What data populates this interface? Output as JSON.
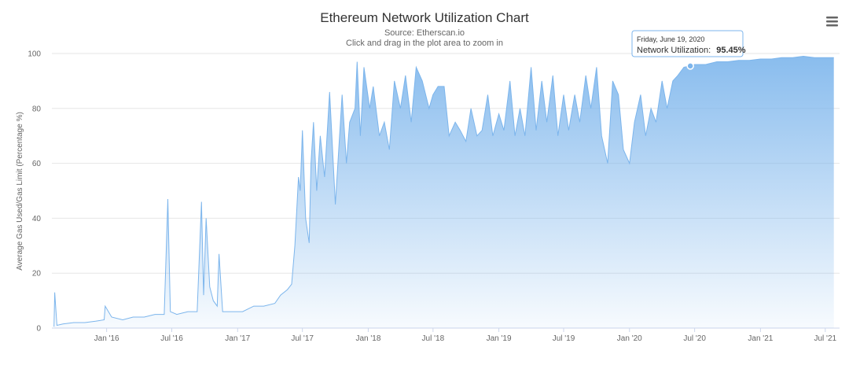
{
  "chart_data": {
    "type": "area",
    "title": "Ethereum Network Utilization Chart",
    "subtitle": "Source: Etherscan.io",
    "subtitle2": "Click and drag in the plot area to zoom in",
    "ylabel": "Average Gas Used/Gas Limit (Percentage %)",
    "xlabel": "",
    "ylim": [
      0,
      100
    ],
    "yticks": [
      0,
      20,
      40,
      60,
      80,
      100
    ],
    "xticks": [
      "Jan '16",
      "Jul '16",
      "Jan '17",
      "Jul '17",
      "Jan '18",
      "Jul '18",
      "Jan '19",
      "Jul '19",
      "Jan '20",
      "Jul '20",
      "Jan '21",
      "Jul '21"
    ],
    "grid": true,
    "legend": "none",
    "series": [
      {
        "name": "Network Utilization",
        "color": "#7cb5ec",
        "x": [
          "2015-08-07",
          "2015-08-09",
          "2015-08-15",
          "2015-09-01",
          "2015-10-01",
          "2015-11-01",
          "2015-12-01",
          "2015-12-25",
          "2015-12-28",
          "2016-01-15",
          "2016-02-15",
          "2016-03-15",
          "2016-04-15",
          "2016-05-15",
          "2016-06-10",
          "2016-06-20",
          "2016-06-27",
          "2016-07-15",
          "2016-08-15",
          "2016-09-10",
          "2016-09-22",
          "2016-09-28",
          "2016-10-05",
          "2016-10-15",
          "2016-10-25",
          "2016-11-05",
          "2016-11-10",
          "2016-11-20",
          "2016-12-05",
          "2017-01-15",
          "2017-02-15",
          "2017-03-15",
          "2017-04-15",
          "2017-05-01",
          "2017-05-20",
          "2017-06-01",
          "2017-06-10",
          "2017-06-20",
          "2017-06-25",
          "2017-07-01",
          "2017-07-10",
          "2017-07-20",
          "2017-07-25",
          "2017-08-01",
          "2017-08-10",
          "2017-08-20",
          "2017-09-01",
          "2017-09-15",
          "2017-10-01",
          "2017-10-20",
          "2017-11-01",
          "2017-11-10",
          "2017-11-25",
          "2017-12-01",
          "2017-12-10",
          "2017-12-20",
          "2018-01-05",
          "2018-01-15",
          "2018-02-01",
          "2018-02-15",
          "2018-03-01",
          "2018-03-15",
          "2018-04-01",
          "2018-04-15",
          "2018-05-01",
          "2018-05-15",
          "2018-06-01",
          "2018-06-20",
          "2018-07-01",
          "2018-07-15",
          "2018-08-01",
          "2018-08-15",
          "2018-09-01",
          "2018-09-15",
          "2018-10-01",
          "2018-10-15",
          "2018-11-01",
          "2018-11-15",
          "2018-12-01",
          "2018-12-15",
          "2019-01-01",
          "2019-01-15",
          "2019-02-01",
          "2019-02-15",
          "2019-03-01",
          "2019-03-15",
          "2019-04-01",
          "2019-04-15",
          "2019-05-01",
          "2019-05-15",
          "2019-06-01",
          "2019-06-15",
          "2019-07-01",
          "2019-07-15",
          "2019-08-01",
          "2019-08-15",
          "2019-09-01",
          "2019-09-15",
          "2019-10-01",
          "2019-10-15",
          "2019-11-01",
          "2019-11-15",
          "2019-12-01",
          "2019-12-15",
          "2020-01-01",
          "2020-01-15",
          "2020-02-01",
          "2020-02-15",
          "2020-03-01",
          "2020-03-15",
          "2020-04-01",
          "2020-04-15",
          "2020-05-01",
          "2020-05-15",
          "2020-06-01",
          "2020-06-19",
          "2020-07-01",
          "2020-08-01",
          "2020-09-01",
          "2020-10-01",
          "2020-11-01",
          "2020-12-01",
          "2021-01-01",
          "2021-02-01",
          "2021-03-01",
          "2021-04-01",
          "2021-05-01",
          "2021-06-01",
          "2021-07-01",
          "2021-07-25"
        ],
        "y": [
          0.5,
          13,
          1,
          1.5,
          2,
          2,
          2.5,
          3,
          8,
          4,
          3,
          4,
          4,
          5,
          5,
          47,
          6,
          5,
          6,
          6,
          46,
          12,
          40,
          15,
          10,
          8,
          27,
          6,
          6,
          6,
          8,
          8,
          9,
          12,
          14,
          16,
          30,
          55,
          50,
          72,
          40,
          31,
          60,
          75,
          50,
          70,
          55,
          86,
          45,
          85,
          60,
          75,
          80,
          97,
          70,
          95,
          80,
          88,
          70,
          75,
          65,
          90,
          80,
          92,
          75,
          95,
          90,
          80,
          85,
          88,
          88,
          70,
          75,
          72,
          68,
          80,
          70,
          72,
          85,
          70,
          78,
          72,
          90,
          70,
          80,
          70,
          95,
          72,
          90,
          75,
          92,
          70,
          85,
          72,
          85,
          75,
          92,
          80,
          95,
          70,
          60,
          90,
          85,
          65,
          60,
          75,
          85,
          70,
          80,
          75,
          90,
          80,
          90,
          92,
          95,
          95.45,
          96,
          96,
          97,
          97,
          97.5,
          97.5,
          98,
          98,
          98.5,
          98.5,
          99,
          98.5,
          98.5,
          98.5
        ]
      }
    ]
  },
  "tooltip": {
    "x": "2020-06-19",
    "y": 95.45,
    "date_label": "Friday, June 19, 2020",
    "series_label": "Network Utilization:",
    "value_label": "95.45%"
  },
  "menu_icon": "hamburger-menu-icon"
}
